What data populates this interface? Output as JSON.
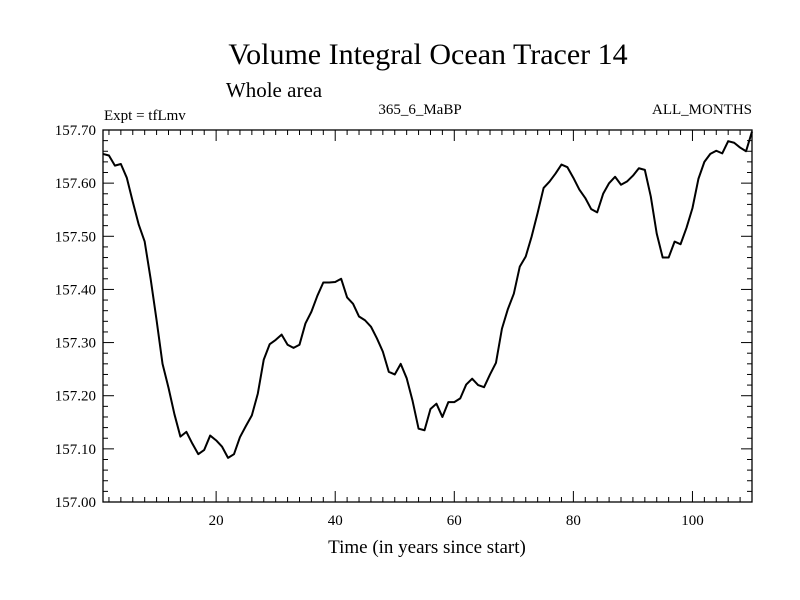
{
  "chart_data": {
    "type": "line",
    "title": "Volume Integral Ocean Tracer 14",
    "subtitle": "Whole area",
    "expt_label": "Expt = tfLmv",
    "center_label": "365_6_MaBP",
    "right_label": "ALL_MONTHS",
    "xlabel": "Time (in years since start)",
    "ylabel": "",
    "xlim": [
      1,
      110
    ],
    "ylim": [
      157.0,
      157.7
    ],
    "x_ticks": [
      20,
      40,
      60,
      80,
      100
    ],
    "y_ticks": [
      "157.00",
      "157.10",
      "157.20",
      "157.30",
      "157.40",
      "157.50",
      "157.60",
      "157.70"
    ],
    "grid": false,
    "series": [
      {
        "x": [
          1,
          2,
          3,
          4,
          5,
          6,
          7,
          8,
          9,
          10,
          11,
          12,
          13,
          14,
          15,
          16,
          17,
          18,
          19,
          20,
          21,
          22,
          23,
          24,
          25,
          26,
          27,
          28,
          29,
          30,
          31,
          32,
          33,
          34,
          35,
          36,
          37,
          38,
          39,
          40,
          41,
          42,
          43,
          44,
          45,
          46,
          47,
          48,
          49,
          50,
          51,
          52,
          53,
          54,
          55,
          56,
          57,
          58,
          59,
          60,
          61,
          62,
          63,
          64,
          65,
          66,
          67,
          68,
          69,
          70,
          71,
          72,
          73,
          74,
          75,
          76,
          77,
          78,
          79,
          80,
          81,
          82,
          83,
          84,
          85,
          86,
          87,
          88,
          89,
          90,
          91,
          92,
          93,
          94,
          95,
          96,
          97,
          98,
          99,
          100,
          101,
          102,
          103,
          104,
          105,
          106,
          107,
          108,
          109,
          110
        ],
        "values": [
          157.655,
          157.652,
          157.633,
          157.636,
          157.61,
          157.565,
          157.522,
          157.49,
          157.42,
          157.342,
          157.26,
          157.215,
          157.165,
          157.123,
          157.132,
          157.11,
          157.09,
          157.098,
          157.125,
          157.116,
          157.104,
          157.083,
          157.09,
          157.122,
          157.143,
          157.163,
          157.204,
          157.268,
          157.297,
          157.305,
          157.315,
          157.296,
          157.29,
          157.296,
          157.336,
          157.358,
          157.388,
          157.413,
          157.413,
          157.414,
          157.42,
          157.385,
          157.373,
          157.349,
          157.342,
          157.33,
          157.308,
          157.283,
          157.245,
          157.24,
          157.26,
          157.233,
          157.19,
          157.138,
          157.135,
          157.175,
          157.185,
          157.16,
          157.188,
          157.188,
          157.195,
          157.221,
          157.232,
          157.22,
          157.216,
          157.24,
          157.262,
          157.326,
          157.363,
          157.392,
          157.443,
          157.462,
          157.5,
          157.544,
          157.591,
          157.603,
          157.618,
          157.635,
          157.63,
          157.61,
          157.588,
          157.572,
          157.551,
          157.545,
          157.58,
          157.6,
          157.612,
          157.597,
          157.603,
          157.614,
          157.628,
          157.625,
          157.575,
          157.505,
          157.46,
          157.46,
          157.49,
          157.485,
          157.516,
          157.553,
          157.608,
          157.64,
          157.655,
          157.661,
          157.656,
          157.679,
          157.676,
          157.667,
          157.66,
          157.697
        ]
      }
    ]
  }
}
